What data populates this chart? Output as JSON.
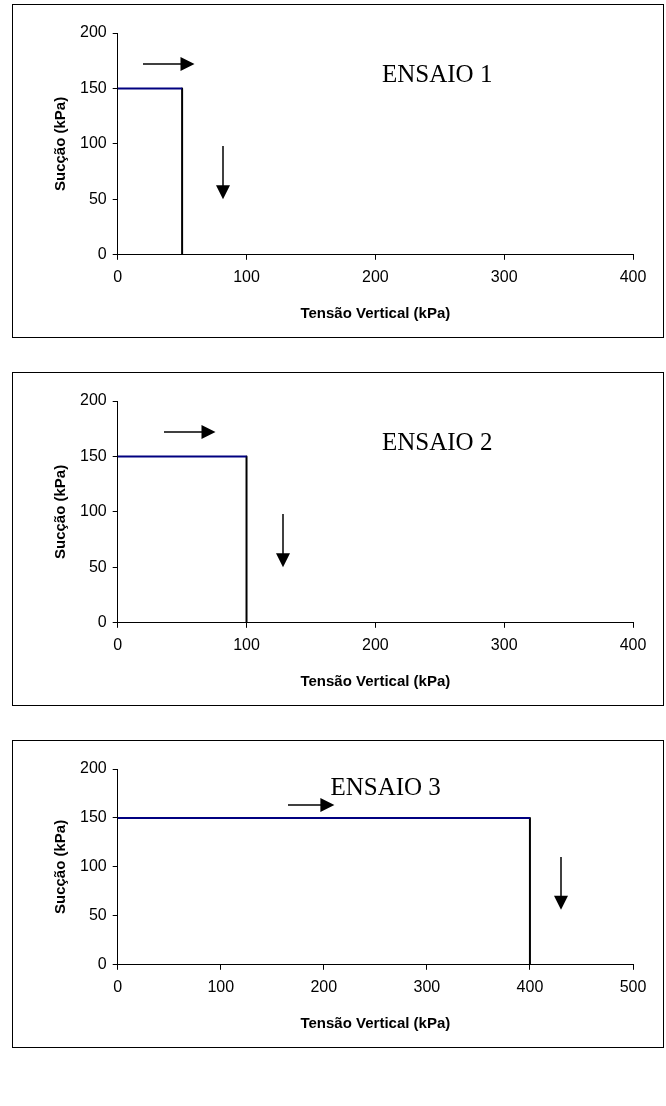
{
  "chart_data": [
    {
      "type": "line",
      "xlabel": "Tensão Vertical (kPa)",
      "ylabel": "Sucção (kPa)",
      "annotations": [
        "ENSAIO 1"
      ],
      "xlim": [
        0,
        400
      ],
      "xticks": [
        0,
        100,
        200,
        300,
        400
      ],
      "ylim": [
        0,
        200
      ],
      "yticks": [
        0,
        50,
        100,
        150,
        200
      ],
      "grid": false,
      "legend": false,
      "marker": "none",
      "series": [
        {
          "color": "#000080",
          "x": [
            0,
            50
          ],
          "values": [
            150,
            150
          ]
        },
        {
          "color": "#000000",
          "x": [
            50,
            50
          ],
          "values": [
            150,
            0
          ]
        }
      ]
    },
    {
      "type": "line",
      "xlabel": "Tensão Vertical (kPa)",
      "ylabel": "Sucção (kPa)",
      "annotations": [
        "ENSAIO 2"
      ],
      "xlim": [
        0,
        400
      ],
      "xticks": [
        0,
        100,
        200,
        300,
        400
      ],
      "ylim": [
        0,
        200
      ],
      "yticks": [
        0,
        50,
        100,
        150,
        200
      ],
      "grid": false,
      "legend": false,
      "marker": "none",
      "series": [
        {
          "color": "#000080",
          "x": [
            0,
            100
          ],
          "values": [
            150,
            150
          ]
        },
        {
          "color": "#000000",
          "x": [
            100,
            100
          ],
          "values": [
            150,
            0
          ]
        }
      ]
    },
    {
      "type": "line",
      "xlabel": "Tensão Vertical (kPa)",
      "ylabel": "Sucção (kPa)",
      "annotations": [
        "ENSAIO 3"
      ],
      "xlim": [
        0,
        500
      ],
      "xticks": [
        0,
        100,
        200,
        300,
        400,
        500
      ],
      "ylim": [
        0,
        200
      ],
      "yticks": [
        0,
        50,
        100,
        150,
        200
      ],
      "grid": false,
      "legend": false,
      "marker": "none",
      "series": [
        {
          "color": "#000080",
          "x": [
            0,
            400
          ],
          "values": [
            150,
            150
          ]
        },
        {
          "color": "#000000",
          "x": [
            400,
            400
          ],
          "values": [
            150,
            0
          ]
        }
      ]
    }
  ]
}
